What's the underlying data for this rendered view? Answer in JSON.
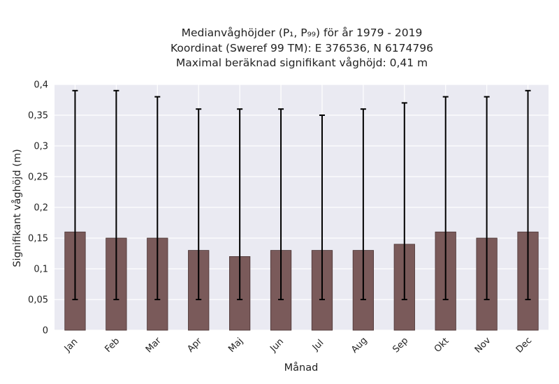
{
  "chart_data": {
    "type": "bar",
    "title_lines": [
      "Medianvåghöjder (P₁, P₉₉) för år 1979 - 2019",
      "Koordinat (Sweref 99 TM): E 376536, N 6174796",
      "Maximal beräknad signifikant våghöjd: 0,41 m"
    ],
    "xlabel": "Månad",
    "ylabel": "Signifikant våghöjd (m)",
    "categories": [
      "Jan",
      "Feb",
      "Mar",
      "Apr",
      "Maj",
      "Jun",
      "Jul",
      "Aug",
      "Sep",
      "Okt",
      "Nov",
      "Dec"
    ],
    "values": [
      0.16,
      0.15,
      0.15,
      0.13,
      0.12,
      0.13,
      0.13,
      0.13,
      0.14,
      0.16,
      0.15,
      0.16
    ],
    "error_low": [
      0.05,
      0.05,
      0.05,
      0.05,
      0.05,
      0.05,
      0.05,
      0.05,
      0.05,
      0.05,
      0.05,
      0.05
    ],
    "error_high": [
      0.39,
      0.39,
      0.38,
      0.36,
      0.36,
      0.36,
      0.35,
      0.36,
      0.37,
      0.38,
      0.38,
      0.39
    ],
    "ylim": [
      0,
      0.4
    ],
    "yticks": [
      0,
      0.05,
      0.1,
      0.15,
      0.2,
      0.25,
      0.3,
      0.35,
      0.4
    ],
    "ytick_labels": [
      "0",
      "0,05",
      "0,1",
      "0,15",
      "0,2",
      "0,25",
      "0,3",
      "0,35",
      "0,4"
    ],
    "grid": true,
    "colors": {
      "bar": "#7a5a5a",
      "bar_edge": "#4a3434",
      "background": "#eaeaf2",
      "grid": "#ffffff",
      "error": "#000000"
    }
  }
}
